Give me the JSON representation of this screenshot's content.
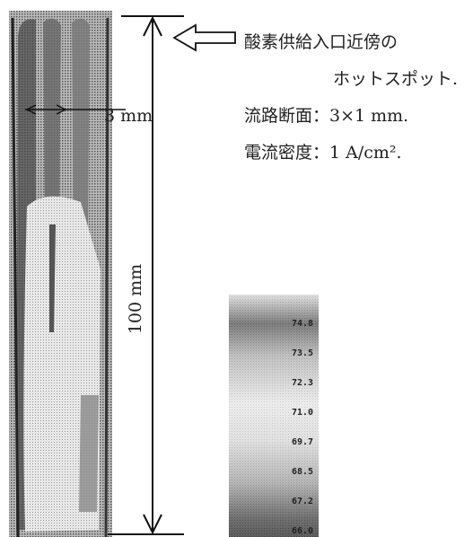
{
  "annotation": {
    "lines": [
      "酸素供給入口近傍の",
      "ホットスポット.",
      "流路断面：3×1 mm.",
      "電流密度：1 A/cm²."
    ]
  },
  "dimensions": {
    "length": "100 mm",
    "width": "3 mm"
  },
  "colorbar": {
    "labels": [
      "74.8",
      "73.5",
      "72.3",
      "71.0",
      "69.7",
      "68.5",
      "67.2",
      "66.0"
    ]
  }
}
